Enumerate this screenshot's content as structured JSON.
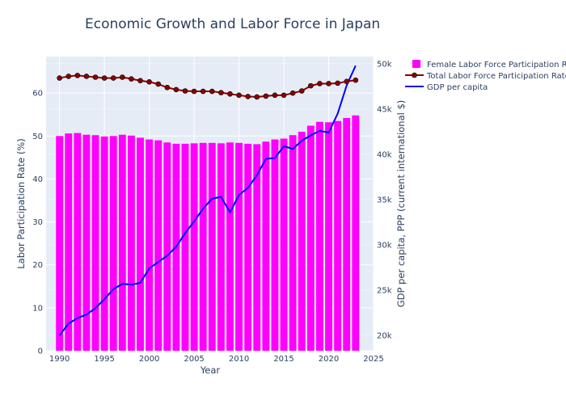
{
  "chart_data": {
    "type": "bar+line",
    "title": "Economic Growth and Labor Force in Japan",
    "xlabel": "Year",
    "ylabel_left": "Labor Participation Rate (%)",
    "ylabel_right": "GDP per capita, PPP (current international $)",
    "xlim": [
      1988.5,
      2025
    ],
    "ylim_left": [
      0,
      68.5
    ],
    "ylim_right": [
      18300,
      50800
    ],
    "x_ticks": [
      1990,
      1995,
      2000,
      2005,
      2010,
      2015,
      2020,
      2025
    ],
    "y_left_ticks": [
      0,
      10,
      20,
      30,
      40,
      50,
      60
    ],
    "y_right_ticks": [
      20000,
      25000,
      30000,
      35000,
      40000,
      45000,
      50000
    ],
    "y_right_tick_labels": [
      "20k",
      "25k",
      "30k",
      "35k",
      "40k",
      "45k",
      "50k"
    ],
    "grid": true,
    "legend_position": "top-right outside plot",
    "x": [
      1990,
      1991,
      1992,
      1993,
      1994,
      1995,
      1996,
      1997,
      1998,
      1999,
      2000,
      2001,
      2002,
      2003,
      2004,
      2005,
      2006,
      2007,
      2008,
      2009,
      2010,
      2011,
      2012,
      2013,
      2014,
      2015,
      2016,
      2017,
      2018,
      2019,
      2020,
      2021,
      2022,
      2023
    ],
    "series": [
      {
        "name": "Female Labor Force Participation Rate",
        "kind": "bar",
        "axis": "left",
        "color": "#ff00ff",
        "values": [
          50.0,
          50.6,
          50.7,
          50.3,
          50.2,
          49.9,
          50.0,
          50.3,
          50.1,
          49.6,
          49.2,
          49.0,
          48.5,
          48.2,
          48.2,
          48.3,
          48.4,
          48.4,
          48.3,
          48.5,
          48.4,
          48.2,
          48.1,
          48.7,
          49.2,
          49.4,
          50.2,
          51.0,
          52.4,
          53.3,
          53.2,
          53.5,
          54.2,
          54.8
        ]
      },
      {
        "name": "Total Labor Force Participation Rate",
        "kind": "line+markers",
        "axis": "left",
        "color": "#8b0000",
        "values": [
          63.5,
          63.9,
          64.1,
          63.9,
          63.7,
          63.5,
          63.5,
          63.7,
          63.3,
          62.9,
          62.6,
          62.1,
          61.3,
          60.8,
          60.5,
          60.4,
          60.4,
          60.4,
          60.1,
          59.8,
          59.5,
          59.2,
          59.1,
          59.3,
          59.5,
          59.5,
          60.0,
          60.5,
          61.7,
          62.2,
          62.2,
          62.3,
          62.7,
          63.0
        ]
      },
      {
        "name": "GDP per capita",
        "kind": "line",
        "axis": "right",
        "color": "#0000ff",
        "values": [
          20000,
          21300,
          21900,
          22300,
          23000,
          24000,
          25100,
          25700,
          25600,
          25800,
          27400,
          28100,
          28800,
          29800,
          31300,
          32600,
          34000,
          35100,
          35300,
          33600,
          35500,
          36300,
          37700,
          39500,
          39600,
          40900,
          40600,
          41500,
          42100,
          42600,
          42400,
          44500,
          47600,
          49800
        ]
      }
    ]
  }
}
